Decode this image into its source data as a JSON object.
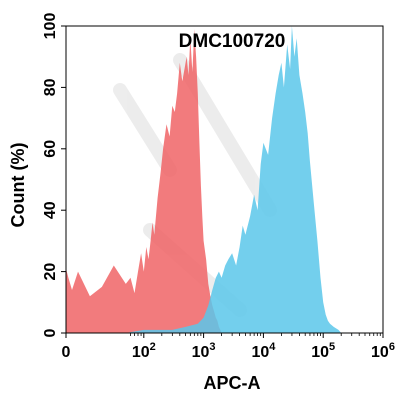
{
  "chart_data": {
    "type": "area",
    "title": "DMC100720",
    "xlabel": "APC-A",
    "ylabel": "Count  (%)",
    "x_scale": "biexponential",
    "xlim": [
      0,
      1000000
    ],
    "ylim": [
      0,
      100
    ],
    "x_ticks": [
      {
        "value": 0,
        "base": "0",
        "exp": ""
      },
      {
        "value": 100,
        "base": "10",
        "exp": "2"
      },
      {
        "value": 1000,
        "base": "10",
        "exp": "3"
      },
      {
        "value": 10000,
        "base": "10",
        "exp": "4"
      },
      {
        "value": 100000,
        "base": "10",
        "exp": "5"
      },
      {
        "value": 1000000,
        "base": "10",
        "exp": "6"
      }
    ],
    "y_ticks": [
      "0",
      "20",
      "40",
      "60",
      "80",
      "100"
    ],
    "y_tick_values": [
      0,
      20,
      40,
      60,
      80,
      100
    ],
    "grid": false,
    "legend": "none",
    "series": [
      {
        "color": "#f06466",
        "opacity": 0.85,
        "x": [
          0,
          2,
          5,
          10,
          20,
          30,
          40,
          50,
          60,
          70,
          80,
          90,
          100,
          110,
          120,
          130,
          140,
          150,
          170,
          190,
          210,
          240,
          270,
          300,
          330,
          360,
          400,
          440,
          480,
          520,
          560,
          600,
          650,
          700,
          750,
          800,
          850,
          900,
          950,
          1000,
          1100,
          1200,
          1300,
          1400,
          1500,
          1600,
          1700,
          1800,
          1900,
          2000
        ],
        "y": [
          21,
          18,
          14,
          20,
          12,
          15,
          22,
          16,
          18,
          13,
          20,
          26,
          20,
          28,
          24,
          30,
          36,
          32,
          44,
          52,
          60,
          68,
          64,
          74,
          72,
          78,
          88,
          82,
          86,
          90,
          84,
          96,
          85,
          99,
          90,
          78,
          62,
          48,
          38,
          30,
          24,
          16,
          12,
          9,
          7,
          5,
          4,
          2,
          1,
          0
        ]
      },
      {
        "color": "#5bc7ea",
        "opacity": 0.85,
        "x": [
          0,
          50,
          100,
          300,
          500,
          800,
          1000,
          1200,
          1400,
          1600,
          1800,
          2000,
          2300,
          2600,
          3000,
          3500,
          4000,
          4500,
          5000,
          6000,
          7000,
          8000,
          9000,
          10000,
          12000,
          14000,
          16000,
          18000,
          20000,
          22000,
          25000,
          28000,
          30000,
          33000,
          36000,
          40000,
          45000,
          50000,
          55000,
          60000,
          70000,
          80000,
          90000,
          100000,
          110000,
          120000,
          130000,
          150000,
          180000,
          200000
        ],
        "y": [
          0,
          0,
          1,
          1,
          2,
          3,
          5,
          9,
          14,
          18,
          20,
          18,
          22,
          24,
          26,
          22,
          28,
          35,
          32,
          38,
          45,
          40,
          55,
          62,
          58,
          70,
          78,
          84,
          88,
          80,
          94,
          86,
          100,
          90,
          96,
          84,
          78,
          72,
          65,
          56,
          42,
          30,
          18,
          10,
          6,
          4,
          3,
          2,
          1,
          0
        ]
      }
    ]
  }
}
